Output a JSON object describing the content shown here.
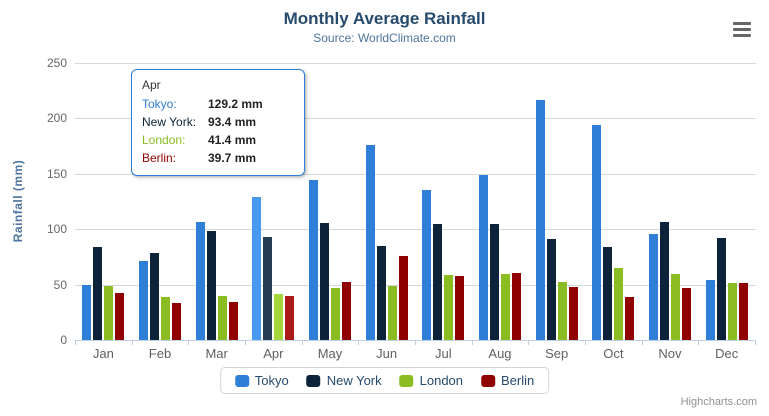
{
  "chart": {
    "title": "Monthly Average Rainfall",
    "subtitle": "Source: WorldClimate.com",
    "credits": "Highcharts.com",
    "y_axis": {
      "title": "Rainfall (mm)"
    },
    "menu_icon": "hamburger-menu-icon"
  },
  "tooltip": {
    "header": "Apr",
    "rows": [
      {
        "label": "Tokyo:",
        "value": "129.2 mm",
        "color": "#2f7ed8"
      },
      {
        "label": "New York:",
        "value": "93.4 mm",
        "color": "#0d233a"
      },
      {
        "label": "London:",
        "value": "41.4 mm",
        "color": "#8bbc21"
      },
      {
        "label": "Berlin:",
        "value": "39.7 mm",
        "color": "#910000"
      }
    ]
  },
  "chart_data": {
    "type": "bar",
    "title": "Monthly Average Rainfall",
    "subtitle": "Source: WorldClimate.com",
    "categories": [
      "Jan",
      "Feb",
      "Mar",
      "Apr",
      "May",
      "Jun",
      "Jul",
      "Aug",
      "Sep",
      "Oct",
      "Nov",
      "Dec"
    ],
    "series": [
      {
        "name": "Tokyo",
        "color": "#2f7ed8",
        "hover_color": "#4998f2",
        "values": [
          49.9,
          71.5,
          106.4,
          129.2,
          144.0,
          176.0,
          135.6,
          148.5,
          216.4,
          194.1,
          95.6,
          54.4
        ]
      },
      {
        "name": "New York",
        "color": "#0d233a",
        "hover_color": "#273d54",
        "values": [
          83.6,
          78.8,
          98.5,
          93.4,
          106.0,
          84.5,
          105.0,
          104.3,
          91.2,
          83.5,
          106.6,
          92.3
        ]
      },
      {
        "name": "London",
        "color": "#8bbc21",
        "hover_color": "#a5d63b",
        "values": [
          48.9,
          38.8,
          39.3,
          41.4,
          47.0,
          48.3,
          59.0,
          59.6,
          52.4,
          65.2,
          59.3,
          51.2
        ]
      },
      {
        "name": "Berlin",
        "color": "#910000",
        "hover_color": "#ab1a1a",
        "values": [
          42.4,
          33.2,
          34.5,
          39.7,
          52.6,
          75.5,
          57.4,
          60.4,
          47.6,
          39.1,
          46.8,
          51.1
        ]
      }
    ],
    "xlabel": "",
    "ylabel": "Rainfall (mm)",
    "unit": "mm",
    "ylim": [
      0,
      250
    ],
    "yticks": [
      0,
      50,
      100,
      150,
      200,
      250
    ],
    "grid": true,
    "legend_position": "bottom",
    "highlighted_category": "Apr",
    "axis_line_color": "#c0d0e0",
    "gridline_color": "#d8d8d8"
  }
}
